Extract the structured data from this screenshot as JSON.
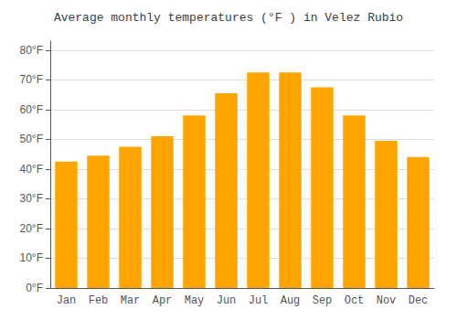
{
  "chart_data": {
    "type": "bar",
    "title": "Average monthly temperatures (°F ) in Velez Rubio",
    "categories": [
      "Jan",
      "Feb",
      "Mar",
      "Apr",
      "May",
      "Jun",
      "Jul",
      "Aug",
      "Sep",
      "Oct",
      "Nov",
      "Dec"
    ],
    "values": [
      42.5,
      44.5,
      47.5,
      51.0,
      58.0,
      65.5,
      72.5,
      72.5,
      67.5,
      58.0,
      49.5,
      44.0
    ],
    "color": "#FFA500",
    "ylim": [
      0,
      83
    ],
    "yticks": [
      {
        "value": 0,
        "label": "0°F"
      },
      {
        "value": 10,
        "label": "10°F"
      },
      {
        "value": 20,
        "label": "20°F"
      },
      {
        "value": 30,
        "label": "30°F"
      },
      {
        "value": 40,
        "label": "40°F"
      },
      {
        "value": 50,
        "label": "50°F"
      },
      {
        "value": 60,
        "label": "60°F"
      },
      {
        "value": 70,
        "label": "70°F"
      },
      {
        "value": 80,
        "label": "80°F"
      }
    ],
    "grid": true
  }
}
